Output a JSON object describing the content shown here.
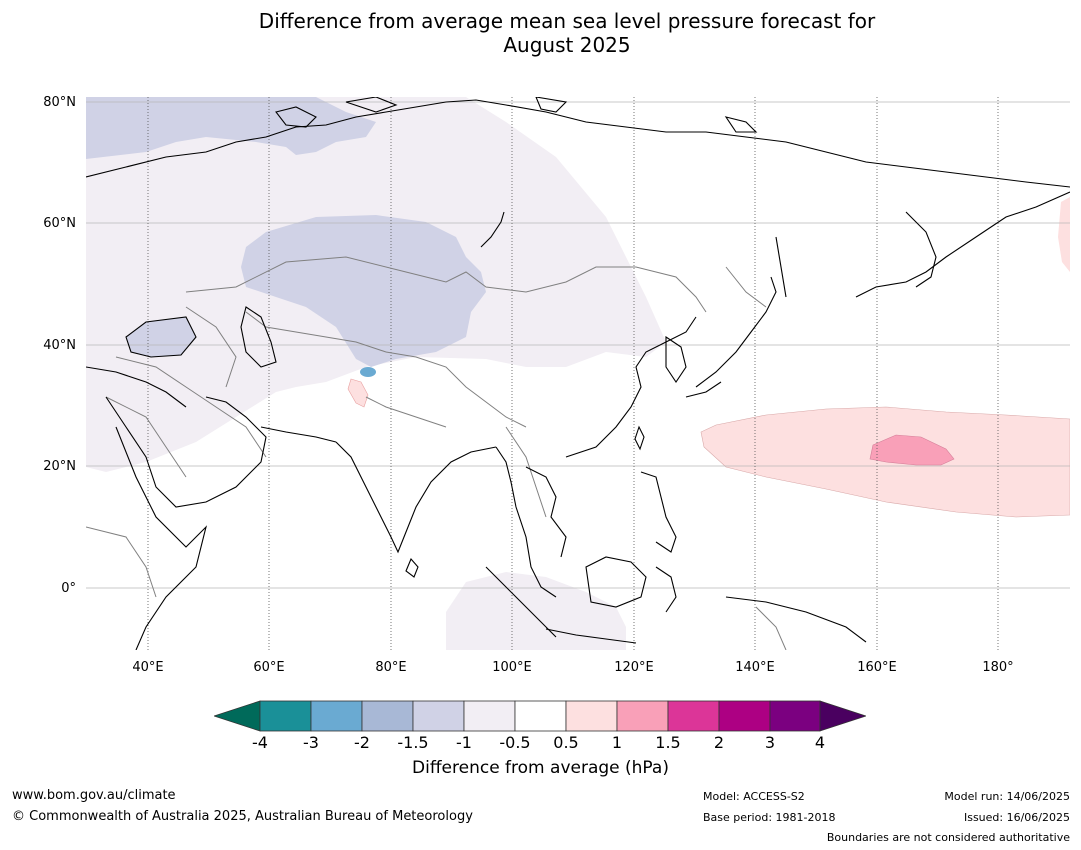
{
  "title": {
    "line1": "Difference from average mean sea level pressure forecast for",
    "line2": "August 2025"
  },
  "map": {
    "lat_labels": [
      "80°N",
      "60°N",
      "40°N",
      "20°N",
      "0°"
    ],
    "lon_labels": [
      "40°E",
      "60°E",
      "80°E",
      "100°E",
      "120°E",
      "140°E",
      "160°E",
      "180°"
    ],
    "land_color": "#ffffff",
    "coast_color": "#000000",
    "border_color": "#808080"
  },
  "colorbar": {
    "ticks": [
      "-4",
      "-3",
      "-2",
      "-1.5",
      "-1",
      "-0.5",
      "0.5",
      "1",
      "1.5",
      "2",
      "3",
      "4"
    ],
    "colors": {
      "below_-4": "#006a5a",
      "-4_-3": "#1a9098",
      "-3_-2": "#6aaad2",
      "-2_-1.5": "#a8b8d6",
      "-1.5_-1": "#d0d2e6",
      "-1_-0.5": "#f2eef4",
      "-0.5_0.5": "#ffffff",
      "0.5_1": "#fde0e0",
      "1_1.5": "#f9a0b8",
      "1.5_2": "#dc3598",
      "2_3": "#ad0083",
      "3_4": "#7b0080",
      "above_4": "#4a0060"
    },
    "label": "Difference from average (hPa)"
  },
  "footer": {
    "url": "www.bom.gov.au/climate",
    "copyright": "© Commonwealth of Australia 2025, Australian Bureau of Meteorology",
    "model": "Model: ACCESS-S2",
    "base_period": "Base period: 1981-2018",
    "model_run": "Model run: 14/06/2025",
    "issued": "Issued: 16/06/2025",
    "disclaimer": "Boundaries are not considered authoritative"
  }
}
